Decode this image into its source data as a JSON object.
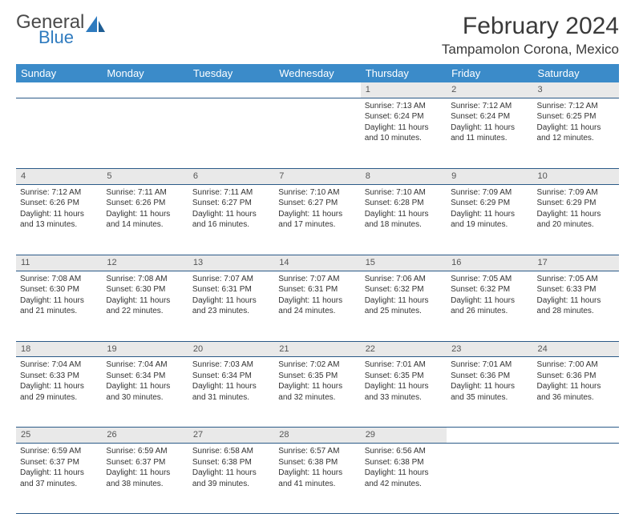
{
  "brand": {
    "word1": "General",
    "word2": "Blue",
    "icon_color": "#2f7bbf",
    "text_color_gray": "#4a4a4a"
  },
  "title": "February 2024",
  "location": "Tampamolon Corona, Mexico",
  "colors": {
    "header_bg": "#3b8bc9",
    "header_text": "#ffffff",
    "daynum_bg": "#e9e9e9",
    "cell_border": "#2b5a88",
    "body_text": "#333333"
  },
  "daysOfWeek": [
    "Sunday",
    "Monday",
    "Tuesday",
    "Wednesday",
    "Thursday",
    "Friday",
    "Saturday"
  ],
  "weeks": [
    [
      null,
      null,
      null,
      null,
      {
        "n": "1",
        "sunrise": "7:13 AM",
        "sunset": "6:24 PM",
        "daylight": "11 hours and 10 minutes."
      },
      {
        "n": "2",
        "sunrise": "7:12 AM",
        "sunset": "6:24 PM",
        "daylight": "11 hours and 11 minutes."
      },
      {
        "n": "3",
        "sunrise": "7:12 AM",
        "sunset": "6:25 PM",
        "daylight": "11 hours and 12 minutes."
      }
    ],
    [
      {
        "n": "4",
        "sunrise": "7:12 AM",
        "sunset": "6:26 PM",
        "daylight": "11 hours and 13 minutes."
      },
      {
        "n": "5",
        "sunrise": "7:11 AM",
        "sunset": "6:26 PM",
        "daylight": "11 hours and 14 minutes."
      },
      {
        "n": "6",
        "sunrise": "7:11 AM",
        "sunset": "6:27 PM",
        "daylight": "11 hours and 16 minutes."
      },
      {
        "n": "7",
        "sunrise": "7:10 AM",
        "sunset": "6:27 PM",
        "daylight": "11 hours and 17 minutes."
      },
      {
        "n": "8",
        "sunrise": "7:10 AM",
        "sunset": "6:28 PM",
        "daylight": "11 hours and 18 minutes."
      },
      {
        "n": "9",
        "sunrise": "7:09 AM",
        "sunset": "6:29 PM",
        "daylight": "11 hours and 19 minutes."
      },
      {
        "n": "10",
        "sunrise": "7:09 AM",
        "sunset": "6:29 PM",
        "daylight": "11 hours and 20 minutes."
      }
    ],
    [
      {
        "n": "11",
        "sunrise": "7:08 AM",
        "sunset": "6:30 PM",
        "daylight": "11 hours and 21 minutes."
      },
      {
        "n": "12",
        "sunrise": "7:08 AM",
        "sunset": "6:30 PM",
        "daylight": "11 hours and 22 minutes."
      },
      {
        "n": "13",
        "sunrise": "7:07 AM",
        "sunset": "6:31 PM",
        "daylight": "11 hours and 23 minutes."
      },
      {
        "n": "14",
        "sunrise": "7:07 AM",
        "sunset": "6:31 PM",
        "daylight": "11 hours and 24 minutes."
      },
      {
        "n": "15",
        "sunrise": "7:06 AM",
        "sunset": "6:32 PM",
        "daylight": "11 hours and 25 minutes."
      },
      {
        "n": "16",
        "sunrise": "7:05 AM",
        "sunset": "6:32 PM",
        "daylight": "11 hours and 26 minutes."
      },
      {
        "n": "17",
        "sunrise": "7:05 AM",
        "sunset": "6:33 PM",
        "daylight": "11 hours and 28 minutes."
      }
    ],
    [
      {
        "n": "18",
        "sunrise": "7:04 AM",
        "sunset": "6:33 PM",
        "daylight": "11 hours and 29 minutes."
      },
      {
        "n": "19",
        "sunrise": "7:04 AM",
        "sunset": "6:34 PM",
        "daylight": "11 hours and 30 minutes."
      },
      {
        "n": "20",
        "sunrise": "7:03 AM",
        "sunset": "6:34 PM",
        "daylight": "11 hours and 31 minutes."
      },
      {
        "n": "21",
        "sunrise": "7:02 AM",
        "sunset": "6:35 PM",
        "daylight": "11 hours and 32 minutes."
      },
      {
        "n": "22",
        "sunrise": "7:01 AM",
        "sunset": "6:35 PM",
        "daylight": "11 hours and 33 minutes."
      },
      {
        "n": "23",
        "sunrise": "7:01 AM",
        "sunset": "6:36 PM",
        "daylight": "11 hours and 35 minutes."
      },
      {
        "n": "24",
        "sunrise": "7:00 AM",
        "sunset": "6:36 PM",
        "daylight": "11 hours and 36 minutes."
      }
    ],
    [
      {
        "n": "25",
        "sunrise": "6:59 AM",
        "sunset": "6:37 PM",
        "daylight": "11 hours and 37 minutes."
      },
      {
        "n": "26",
        "sunrise": "6:59 AM",
        "sunset": "6:37 PM",
        "daylight": "11 hours and 38 minutes."
      },
      {
        "n": "27",
        "sunrise": "6:58 AM",
        "sunset": "6:38 PM",
        "daylight": "11 hours and 39 minutes."
      },
      {
        "n": "28",
        "sunrise": "6:57 AM",
        "sunset": "6:38 PM",
        "daylight": "11 hours and 41 minutes."
      },
      {
        "n": "29",
        "sunrise": "6:56 AM",
        "sunset": "6:38 PM",
        "daylight": "11 hours and 42 minutes."
      },
      null,
      null
    ]
  ],
  "labels": {
    "sunrise": "Sunrise: ",
    "sunset": "Sunset: ",
    "daylight": "Daylight: "
  }
}
